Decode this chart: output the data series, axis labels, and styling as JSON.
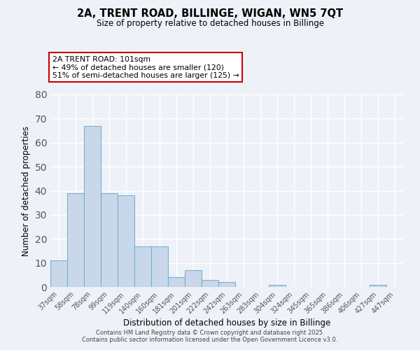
{
  "title": "2A, TRENT ROAD, BILLINGE, WIGAN, WN5 7QT",
  "subtitle": "Size of property relative to detached houses in Billinge",
  "xlabel": "Distribution of detached houses by size in Billinge",
  "ylabel": "Number of detached properties",
  "bar_color": "#c8d8ea",
  "bar_edge_color": "#7ab0cc",
  "categories": [
    "37sqm",
    "58sqm",
    "78sqm",
    "99sqm",
    "119sqm",
    "140sqm",
    "160sqm",
    "181sqm",
    "201sqm",
    "222sqm",
    "242sqm",
    "263sqm",
    "283sqm",
    "304sqm",
    "324sqm",
    "345sqm",
    "365sqm",
    "386sqm",
    "406sqm",
    "427sqm",
    "447sqm"
  ],
  "values": [
    11,
    39,
    67,
    39,
    38,
    17,
    17,
    4,
    7,
    3,
    2,
    0,
    0,
    1,
    0,
    0,
    0,
    0,
    0,
    1,
    0
  ],
  "ylim": [
    0,
    80
  ],
  "yticks": [
    0,
    10,
    20,
    30,
    40,
    50,
    60,
    70,
    80
  ],
  "annotation_title": "2A TRENT ROAD: 101sqm",
  "annotation_line1": "← 49% of detached houses are smaller (120)",
  "annotation_line2": "51% of semi-detached houses are larger (125) →",
  "annotation_box_color": "#ffffff",
  "annotation_box_edge": "#cc0000",
  "footer_line1": "Contains HM Land Registry data © Crown copyright and database right 2025.",
  "footer_line2": "Contains public sector information licensed under the Open Government Licence v3.0.",
  "background_color": "#eef2f8",
  "grid_color": "#ffffff",
  "tick_color": "#555555"
}
